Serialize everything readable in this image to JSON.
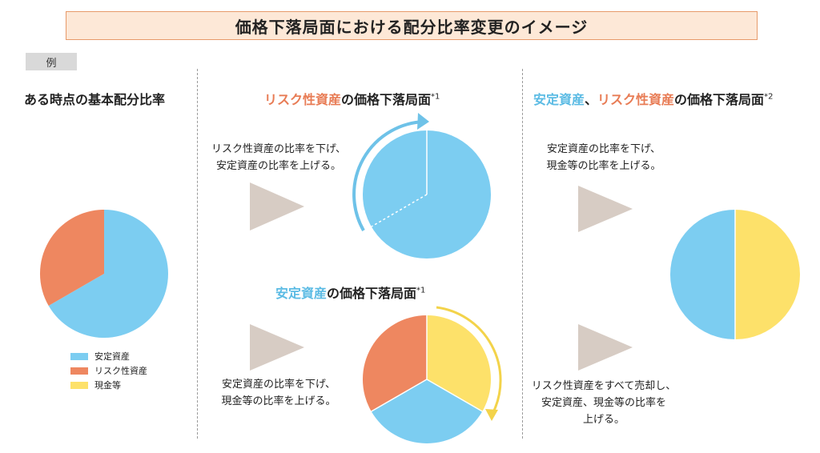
{
  "title": "価格下落局面における配分比率変更のイメージ",
  "example_label": "例",
  "colors": {
    "stable": "#7ccdf1",
    "risk": "#ee8760",
    "cash": "#fde16a",
    "arrow": "#d7ccc4",
    "blue_arrow": "#6ec2e8",
    "yellow_arrow": "#f3d34a"
  },
  "section1": {
    "heading": "ある時点の基本配分比率"
  },
  "section2_top": {
    "heading_highlight": "リスク性資産",
    "heading_rest": "の価格下落局面",
    "note": "*1",
    "desc_line1": "リスク性資産の比率を下げ、",
    "desc_line2": "安定資産の比率を上げる。"
  },
  "section2_bottom": {
    "heading_highlight": "安定資産",
    "heading_rest": "の価格下落局面",
    "note": "*1",
    "desc_line1": "安定資産の比率を下げ、",
    "desc_line2": "現金等の比率を上げる。"
  },
  "section3": {
    "heading_highlight1": "安定資産",
    "heading_sep": "、",
    "heading_highlight2": "リスク性資産",
    "heading_rest": "の価格下落局面",
    "note": "*2",
    "desc_top_line1": "安定資産の比率を下げ、",
    "desc_top_line2": "現金等の比率を上げる。",
    "desc_bottom_line1": "リスク性資産をすべて売却し、",
    "desc_bottom_line2": "安定資産、現金等の比率を",
    "desc_bottom_line3": "上げる。"
  },
  "legend": [
    {
      "label": "安定資産",
      "color": "#7ccdf1"
    },
    {
      "label": "リスク性資産",
      "color": "#ee8760"
    },
    {
      "label": "現金等",
      "color": "#fde16a"
    }
  ]
}
